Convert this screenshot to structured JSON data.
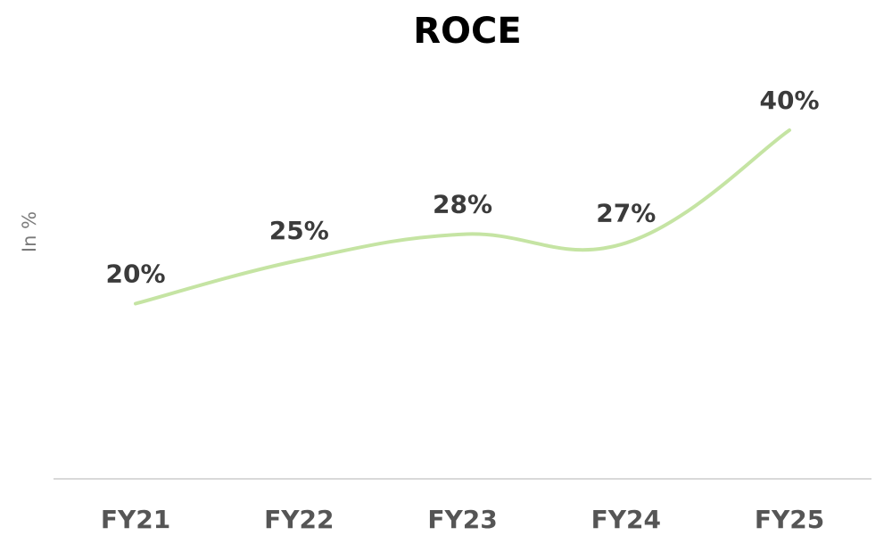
{
  "chart_data": {
    "type": "line",
    "title": "ROCE",
    "ylabel": "In %",
    "xlabel": "",
    "categories": [
      "FY21",
      "FY22",
      "FY23",
      "FY24",
      "FY25"
    ],
    "series": [
      {
        "values": [
          20,
          25,
          28,
          27,
          40
        ],
        "labels": [
          "20%",
          "25%",
          "28%",
          "27%",
          "40%"
        ]
      }
    ],
    "ylim": [
      0,
      45
    ],
    "grid": false,
    "legend": "none",
    "line_color": "#c5e4a3",
    "axis_color": "#d9d9d9"
  }
}
